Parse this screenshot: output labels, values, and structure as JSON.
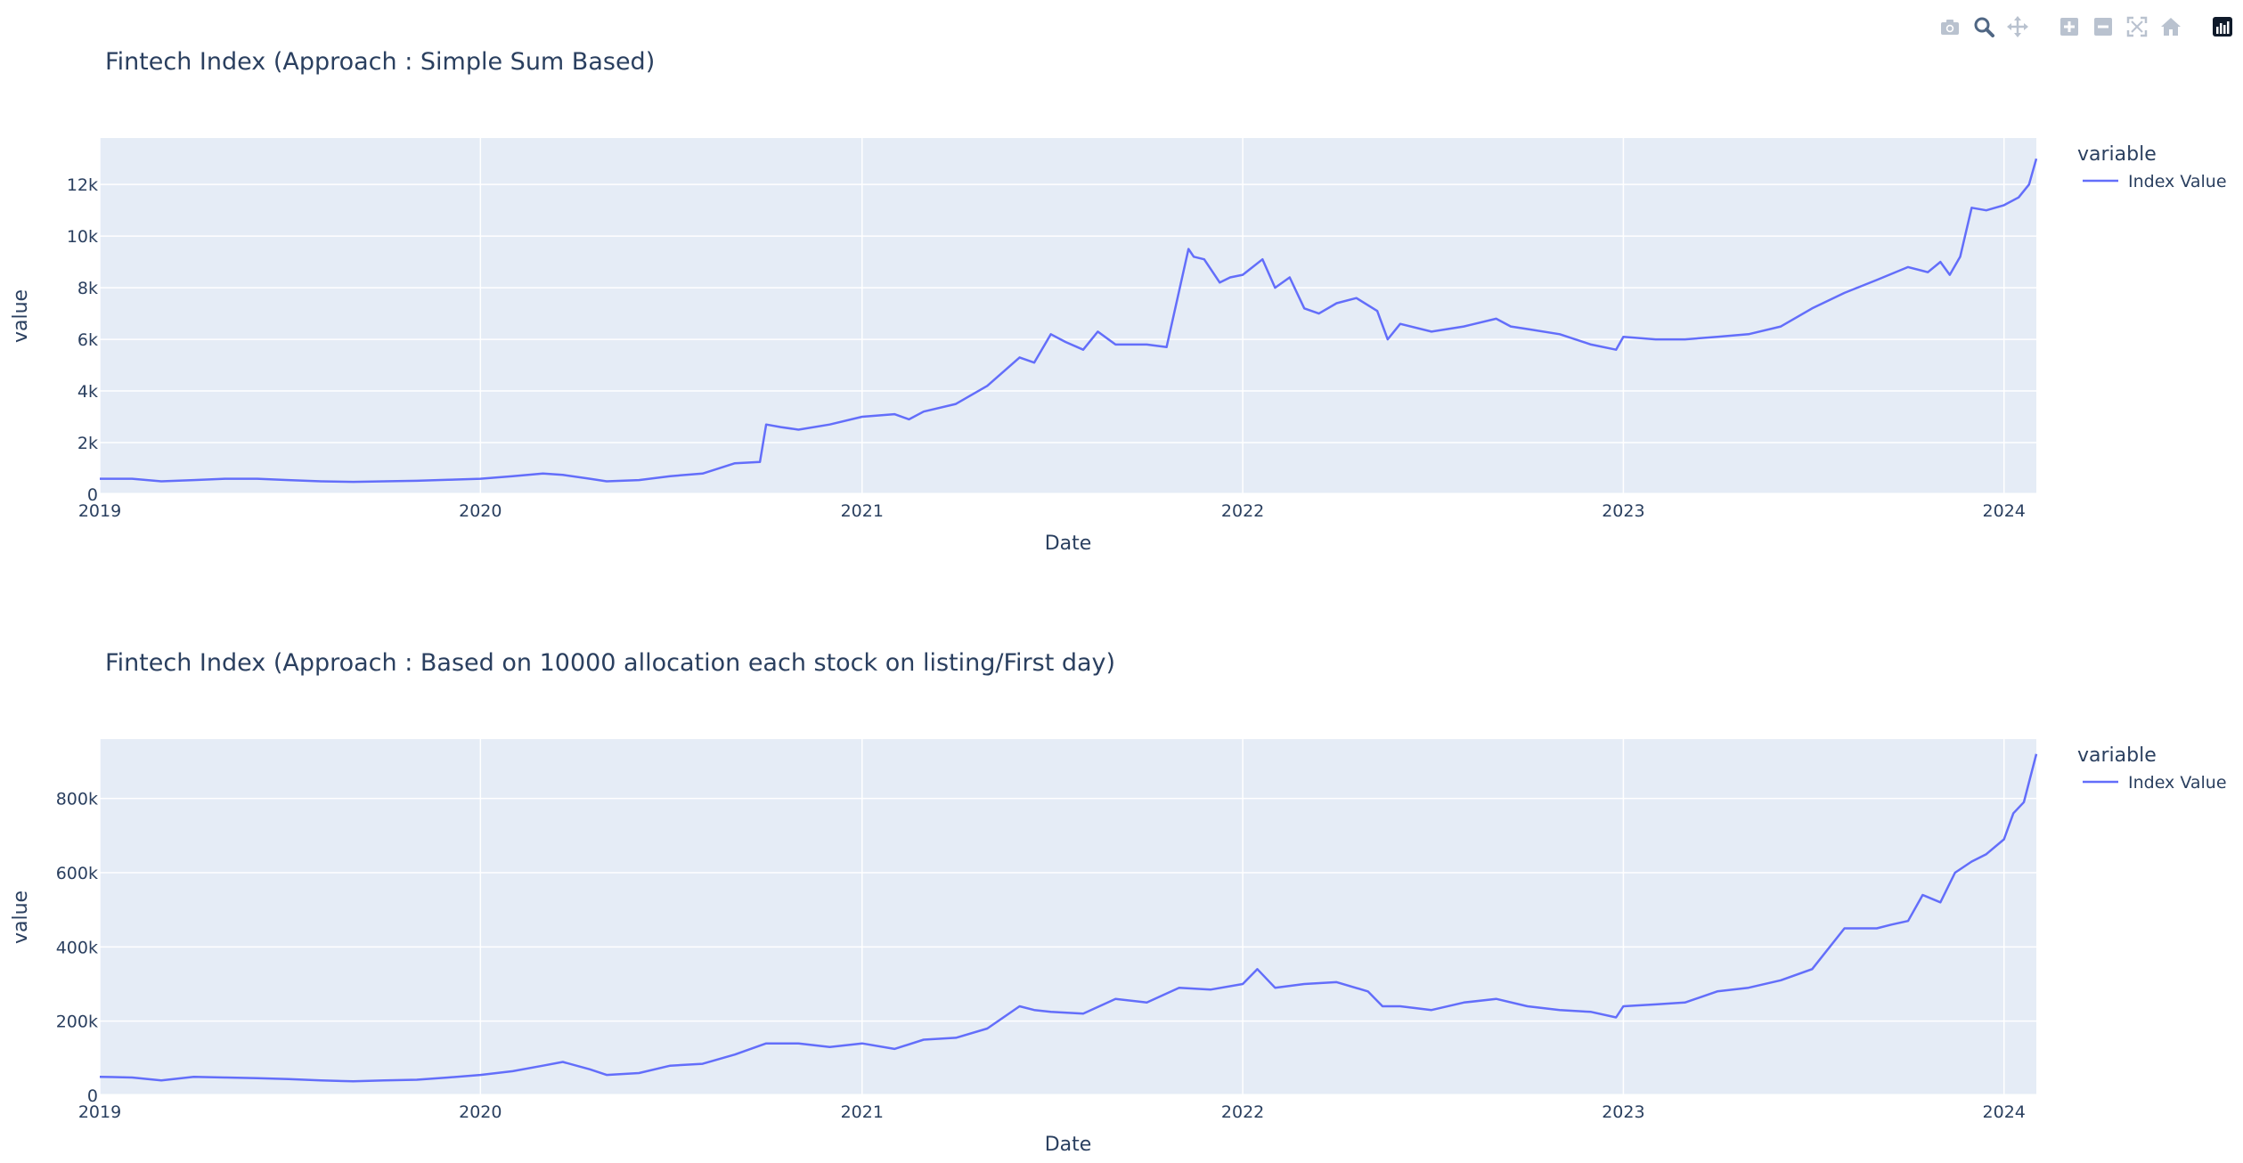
{
  "toolbar": {
    "buttons": [
      {
        "name": "camera-icon",
        "label": "Download plot as a png"
      },
      {
        "name": "zoom-icon",
        "label": "Zoom"
      },
      {
        "name": "pan-icon",
        "label": "Pan"
      },
      {
        "name": "zoom-in-icon",
        "label": "Zoom in"
      },
      {
        "name": "zoom-out-icon",
        "label": "Zoom out"
      },
      {
        "name": "autoscale-icon",
        "label": "Autoscale"
      },
      {
        "name": "reset-axes-icon",
        "label": "Reset axes"
      },
      {
        "name": "plotly-logo-icon",
        "label": "Produced with Plotly"
      }
    ]
  },
  "colors": {
    "plot_bg": "#e5ecf6",
    "grid": "#ffffff",
    "line": "#636efa",
    "text": "#2a3f5f",
    "modebar_icon": "#b9c2cf",
    "modebar_active": "#506784"
  },
  "chart_data": [
    {
      "type": "line",
      "title": "Fintech Index (Approach : Simple Sum Based)",
      "xlabel": "Date",
      "ylabel": "value",
      "xlim": [
        "2019-01-01",
        "2024-02-01"
      ],
      "ylim": [
        0,
        13800
      ],
      "x_ticks": [
        "2019-01-01",
        "2020-01-01",
        "2021-01-01",
        "2022-01-01",
        "2023-01-01",
        "2024-01-01"
      ],
      "x_tick_labels": [
        "2019",
        "2020",
        "2021",
        "2022",
        "2023",
        "2024"
      ],
      "y_ticks": [
        0,
        2000,
        4000,
        6000,
        8000,
        10000,
        12000
      ],
      "y_tick_labels": [
        "0",
        "2k",
        "4k",
        "6k",
        "8k",
        "10k",
        "12k"
      ],
      "grid": true,
      "legend": {
        "title": "variable",
        "placement": "top-right-outside",
        "entries": [
          "Index Value"
        ]
      },
      "series": [
        {
          "name": "Index Value",
          "x": [
            "2019-01-01",
            "2019-02-01",
            "2019-03-01",
            "2019-04-01",
            "2019-05-01",
            "2019-06-01",
            "2019-07-01",
            "2019-08-01",
            "2019-09-01",
            "2019-10-01",
            "2019-11-01",
            "2019-12-01",
            "2020-01-01",
            "2020-02-01",
            "2020-03-01",
            "2020-03-20",
            "2020-04-15",
            "2020-05-01",
            "2020-06-01",
            "2020-07-01",
            "2020-08-01",
            "2020-09-01",
            "2020-09-25",
            "2020-10-01",
            "2020-10-15",
            "2020-11-01",
            "2020-12-01",
            "2021-01-01",
            "2021-02-01",
            "2021-02-15",
            "2021-03-01",
            "2021-04-01",
            "2021-05-01",
            "2021-06-01",
            "2021-06-15",
            "2021-07-01",
            "2021-07-15",
            "2021-08-01",
            "2021-08-15",
            "2021-09-01",
            "2021-10-01",
            "2021-10-20",
            "2021-11-10",
            "2021-11-15",
            "2021-11-25",
            "2021-12-10",
            "2021-12-20",
            "2022-01-01",
            "2022-01-20",
            "2022-02-01",
            "2022-02-15",
            "2022-03-01",
            "2022-03-15",
            "2022-04-01",
            "2022-04-20",
            "2022-05-10",
            "2022-05-20",
            "2022-06-01",
            "2022-07-01",
            "2022-08-01",
            "2022-09-01",
            "2022-09-15",
            "2022-10-01",
            "2022-11-01",
            "2022-12-01",
            "2022-12-25",
            "2023-01-01",
            "2023-02-01",
            "2023-03-01",
            "2023-04-01",
            "2023-05-01",
            "2023-06-01",
            "2023-07-01",
            "2023-08-01",
            "2023-09-01",
            "2023-10-01",
            "2023-10-20",
            "2023-11-01",
            "2023-11-10",
            "2023-11-20",
            "2023-12-01",
            "2023-12-15",
            "2024-01-01",
            "2024-01-15",
            "2024-01-25",
            "2024-02-01"
          ],
          "y": [
            600,
            600,
            500,
            550,
            600,
            600,
            550,
            500,
            480,
            500,
            520,
            560,
            600,
            700,
            800,
            750,
            600,
            500,
            550,
            700,
            800,
            1200,
            1250,
            2700,
            2600,
            2500,
            2700,
            3000,
            3100,
            2900,
            3200,
            3500,
            4200,
            5300,
            5100,
            6200,
            5900,
            5600,
            6300,
            5800,
            5800,
            5700,
            9500,
            9200,
            9100,
            8200,
            8400,
            8500,
            9100,
            8000,
            8400,
            7200,
            7000,
            7400,
            7600,
            7100,
            6000,
            6600,
            6300,
            6500,
            6800,
            6500,
            6400,
            6200,
            5800,
            5600,
            6100,
            6000,
            6000,
            6100,
            6200,
            6500,
            7200,
            7800,
            8300,
            8800,
            8600,
            9000,
            8500,
            9200,
            11100,
            11000,
            11200,
            11500,
            12000,
            13000
          ]
        }
      ]
    },
    {
      "type": "line",
      "title": "Fintech Index (Approach : Based on 10000 allocation each stock on listing/First day)",
      "xlabel": "Date",
      "ylabel": "value",
      "xlim": [
        "2019-01-01",
        "2024-02-01"
      ],
      "ylim": [
        0,
        960000
      ],
      "x_ticks": [
        "2019-01-01",
        "2020-01-01",
        "2021-01-01",
        "2022-01-01",
        "2023-01-01",
        "2024-01-01"
      ],
      "x_tick_labels": [
        "2019",
        "2020",
        "2021",
        "2022",
        "2023",
        "2024"
      ],
      "y_ticks": [
        0,
        200000,
        400000,
        600000,
        800000
      ],
      "y_tick_labels": [
        "0",
        "200k",
        "400k",
        "600k",
        "800k"
      ],
      "grid": true,
      "legend": {
        "title": "variable",
        "placement": "top-right-outside",
        "entries": [
          "Index Value"
        ]
      },
      "series": [
        {
          "name": "Index Value",
          "x": [
            "2019-01-01",
            "2019-02-01",
            "2019-03-01",
            "2019-04-01",
            "2019-05-01",
            "2019-06-01",
            "2019-07-01",
            "2019-08-01",
            "2019-09-01",
            "2019-10-01",
            "2019-11-01",
            "2019-12-01",
            "2020-01-01",
            "2020-02-01",
            "2020-03-01",
            "2020-03-20",
            "2020-04-15",
            "2020-05-01",
            "2020-06-01",
            "2020-07-01",
            "2020-08-01",
            "2020-09-01",
            "2020-10-01",
            "2020-11-01",
            "2020-12-01",
            "2021-01-01",
            "2021-02-01",
            "2021-03-01",
            "2021-04-01",
            "2021-05-01",
            "2021-06-01",
            "2021-06-15",
            "2021-07-01",
            "2021-08-01",
            "2021-09-01",
            "2021-10-01",
            "2021-11-01",
            "2021-12-01",
            "2022-01-01",
            "2022-01-15",
            "2022-02-01",
            "2022-03-01",
            "2022-04-01",
            "2022-05-01",
            "2022-05-15",
            "2022-06-01",
            "2022-07-01",
            "2022-08-01",
            "2022-09-01",
            "2022-10-01",
            "2022-11-01",
            "2022-12-01",
            "2022-12-25",
            "2023-01-01",
            "2023-02-01",
            "2023-03-01",
            "2023-04-01",
            "2023-05-01",
            "2023-06-01",
            "2023-07-01",
            "2023-08-01",
            "2023-09-01",
            "2023-09-15",
            "2023-10-01",
            "2023-10-15",
            "2023-11-01",
            "2023-11-15",
            "2023-12-01",
            "2023-12-15",
            "2024-01-01",
            "2024-01-10",
            "2024-01-20",
            "2024-02-01"
          ],
          "y": [
            50000,
            48000,
            40000,
            50000,
            48000,
            46000,
            44000,
            40000,
            38000,
            40000,
            42000,
            48000,
            55000,
            65000,
            80000,
            90000,
            70000,
            55000,
            60000,
            80000,
            85000,
            110000,
            140000,
            140000,
            130000,
            140000,
            125000,
            150000,
            155000,
            180000,
            240000,
            230000,
            225000,
            220000,
            260000,
            250000,
            290000,
            285000,
            300000,
            340000,
            290000,
            300000,
            305000,
            280000,
            240000,
            240000,
            230000,
            250000,
            260000,
            240000,
            230000,
            225000,
            210000,
            240000,
            245000,
            250000,
            280000,
            290000,
            310000,
            340000,
            450000,
            450000,
            460000,
            470000,
            540000,
            520000,
            600000,
            630000,
            650000,
            690000,
            760000,
            790000,
            920000
          ]
        }
      ]
    }
  ]
}
